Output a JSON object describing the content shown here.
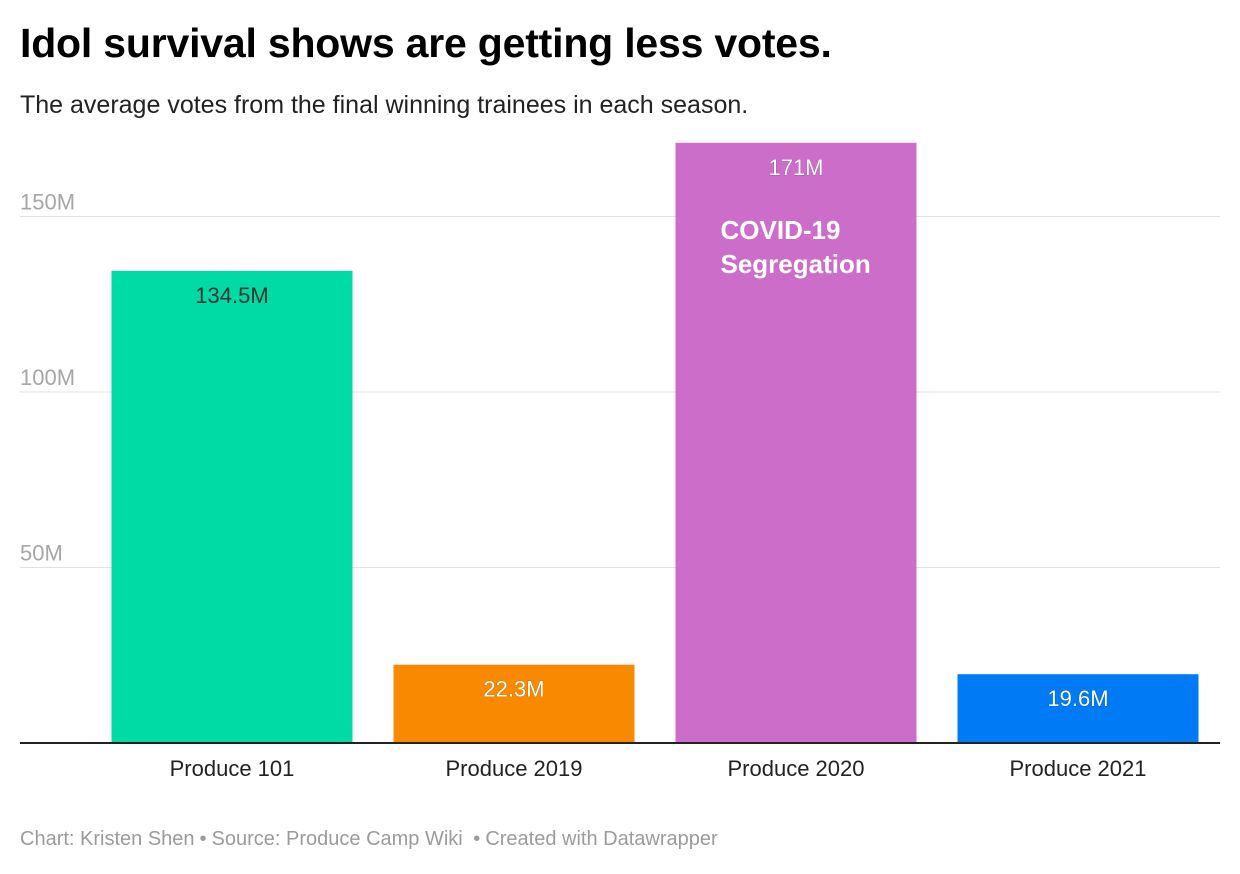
{
  "header": {
    "title": "Idol survival shows are getting less votes.",
    "subtitle": "The average votes from the final winning trainees in each season."
  },
  "chart_data": {
    "type": "bar",
    "categories": [
      "Produce 101",
      "Produce 2019",
      "Produce 2020",
      "Produce 2021"
    ],
    "values": [
      134.5,
      22.3,
      171,
      19.6
    ],
    "value_labels": [
      "134.5M",
      "22.3M",
      "171M",
      "19.6M"
    ],
    "colors": [
      "#00dba5",
      "#f98a00",
      "#cc6ec9",
      "#007bf5"
    ],
    "unit": "M",
    "ylim": [
      0,
      171
    ],
    "yticks": [
      50,
      100,
      150
    ],
    "ytick_labels": [
      "50M",
      "100M",
      "150M"
    ],
    "grid": true,
    "annotations": [
      {
        "category": "Produce 2020",
        "lines": [
          "COVID-19",
          "Segregation"
        ]
      }
    ]
  },
  "footer": {
    "credit": "Chart: Kristen Shen",
    "source": "Source: Produce Camp Wiki",
    "tool": "Created with Datawrapper"
  }
}
